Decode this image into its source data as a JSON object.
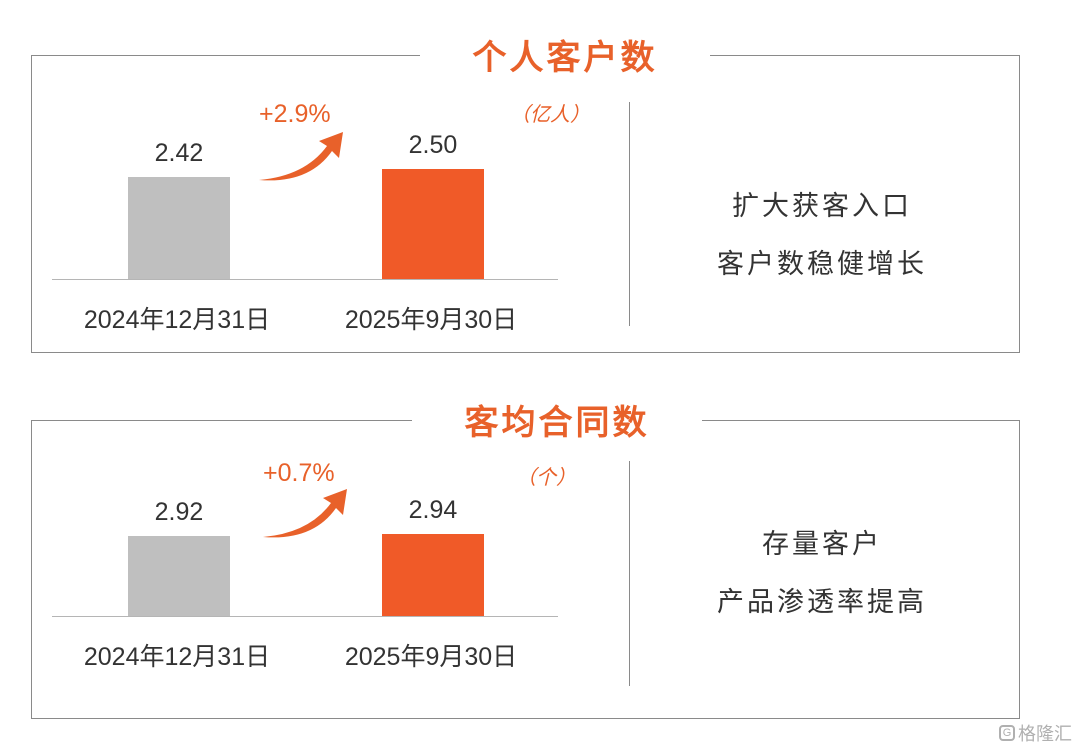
{
  "panels": [
    {
      "title": "个人客户数",
      "unit": "（亿人）",
      "growth_label": "+2.9%",
      "note_lines": [
        "扩大获客入口",
        "客户数稳健增长"
      ]
    },
    {
      "title": "客均合同数",
      "unit": "（个）",
      "growth_label": "+0.7%",
      "note_lines": [
        "存量客户",
        "产品渗透率提高"
      ]
    }
  ],
  "chart_data": [
    {
      "type": "bar",
      "title": "个人客户数",
      "ylabel": "（亿人）",
      "categories": [
        "2024年12月31日",
        "2025年9月30日"
      ],
      "values": [
        2.42,
        2.5
      ],
      "value_labels": [
        "2.42",
        "2.50"
      ],
      "bar_colors": [
        "#bfbfbf",
        "#f05a28"
      ],
      "growth": "+2.9%"
    },
    {
      "type": "bar",
      "title": "客均合同数",
      "ylabel": "（个）",
      "categories": [
        "2024年12月31日",
        "2025年9月30日"
      ],
      "values": [
        2.92,
        2.94
      ],
      "value_labels": [
        "2.92",
        "2.94"
      ],
      "bar_colors": [
        "#bfbfbf",
        "#f05a28"
      ],
      "growth": "+0.7%"
    }
  ],
  "watermark": "格隆汇",
  "colors": {
    "accent": "#e8612a",
    "bar_old": "#bfbfbf",
    "bar_new": "#f05a28"
  }
}
